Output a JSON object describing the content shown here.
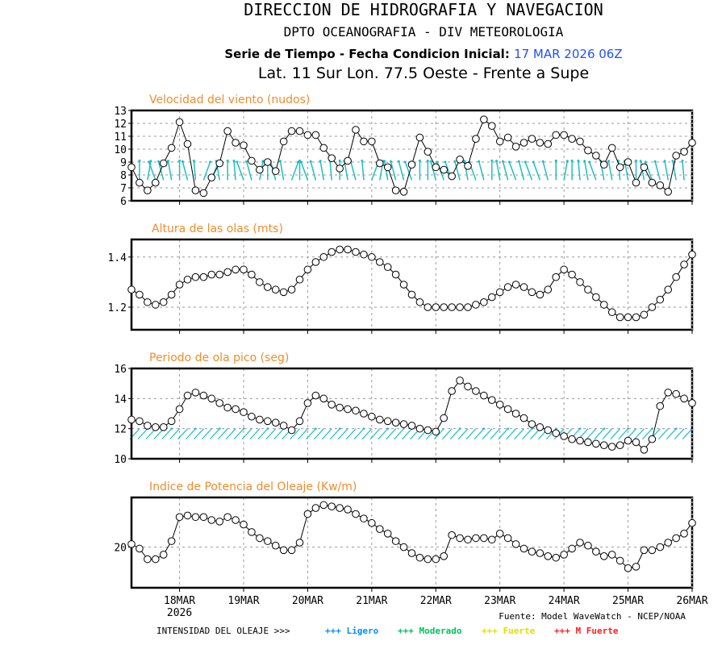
{
  "header": {
    "line1": "DIRECCION DE HIDROGRAFIA Y NAVEGACION",
    "line2": "DPTO OCEANOGRAFIA - DIV METEOROLOGIA",
    "line3_prefix": "Serie de Tiempo - Fecha Condicion Inicial:",
    "line3_date": "17 MAR 2026 06Z",
    "line4": "Lat. 11 Sur  Lon. 77.5 Oeste - Frente a Supe"
  },
  "footer": {
    "source": "Fuente: Model WaveWatch - NCEP/NOAA",
    "legend_label": "INTENSIDAD DEL OLEAJE >>>",
    "legend_items": [
      {
        "label": "+++ Ligero",
        "color": "#0090ff"
      },
      {
        "label": "+++ Moderado",
        "color": "#00c060"
      },
      {
        "label": "+++ Fuerte",
        "color": "#e0e000"
      },
      {
        "label": "+++ M Fuerte",
        "color": "#ff2020"
      }
    ]
  },
  "chart_data": [
    {
      "type": "line",
      "title": "Velocidad del viento (nudos)",
      "x_start": "17MAR2026 06Z",
      "x_step_hours": 3,
      "xticks": [
        "18MAR",
        "19MAR",
        "20MAR",
        "21MAR",
        "22MAR",
        "23MAR",
        "24MAR",
        "25MAR",
        "26MAR"
      ],
      "xtick_sub": "2026",
      "ylim": [
        6,
        13
      ],
      "yticks": [
        6,
        7,
        8,
        9,
        10,
        11,
        12,
        13
      ],
      "grid": true,
      "direction_arrows": true,
      "values": [
        8.6,
        7.4,
        6.8,
        7.4,
        8.9,
        10.1,
        12.1,
        10.4,
        6.8,
        6.6,
        7.8,
        8.9,
        11.4,
        10.5,
        10.3,
        9.1,
        8.4,
        9.0,
        8.3,
        10.6,
        11.4,
        11.4,
        11.1,
        11.1,
        10.1,
        9.3,
        8.5,
        9.1,
        11.5,
        10.6,
        10.6,
        8.9,
        8.6,
        6.8,
        6.7,
        8.8,
        10.9,
        9.8,
        8.6,
        8.4,
        7.9,
        9.2,
        8.7,
        10.8,
        12.3,
        11.8,
        10.6,
        10.9,
        10.2,
        10.5,
        10.8,
        10.5,
        10.4,
        11.1,
        11.1,
        10.8,
        10.6,
        9.9,
        9.5,
        8.8,
        10.1,
        8.6,
        9.0,
        7.4,
        8.6,
        7.4,
        7.2,
        6.7,
        9.5,
        9.8,
        10.5
      ],
      "arrow_angles_deg": [
        0,
        0,
        10,
        -20,
        -15,
        -10,
        0,
        -15,
        -5,
        20,
        20,
        -10,
        0,
        -5,
        -20,
        -15,
        10,
        0,
        -15,
        -10,
        20,
        0,
        -20,
        -15,
        -10,
        -5,
        0,
        -10,
        -15,
        -5,
        20,
        10,
        -10,
        -15,
        -15,
        -20,
        0,
        0,
        -15,
        -20,
        -20,
        -15,
        -10,
        -20,
        -15,
        0,
        -10,
        -15,
        -20,
        -15,
        -20,
        -20,
        -15,
        0,
        10,
        0,
        -5,
        -10,
        -20,
        -10,
        -10,
        -5,
        -10,
        0,
        -10,
        -20,
        -15,
        -10,
        -10,
        -5,
        0
      ]
    },
    {
      "type": "line",
      "title": "Altura de las olas (mts)",
      "ylim": [
        1.11,
        1.47
      ],
      "yticks": [
        1.2,
        1.4
      ],
      "grid": true,
      "values": [
        1.27,
        1.25,
        1.22,
        1.21,
        1.22,
        1.25,
        1.29,
        1.31,
        1.32,
        1.32,
        1.33,
        1.33,
        1.34,
        1.35,
        1.35,
        1.33,
        1.3,
        1.28,
        1.27,
        1.26,
        1.27,
        1.31,
        1.35,
        1.38,
        1.4,
        1.42,
        1.43,
        1.43,
        1.42,
        1.41,
        1.4,
        1.38,
        1.36,
        1.33,
        1.29,
        1.25,
        1.22,
        1.2,
        1.2,
        1.2,
        1.2,
        1.2,
        1.2,
        1.21,
        1.22,
        1.24,
        1.26,
        1.28,
        1.29,
        1.28,
        1.26,
        1.25,
        1.27,
        1.32,
        1.35,
        1.33,
        1.3,
        1.27,
        1.24,
        1.21,
        1.18,
        1.16,
        1.16,
        1.16,
        1.17,
        1.2,
        1.23,
        1.27,
        1.32,
        1.37,
        1.41
      ]
    },
    {
      "type": "line",
      "title": "Periodo de ola pico (seg)",
      "ylim": [
        10,
        16
      ],
      "yticks": [
        10,
        12,
        14,
        16
      ],
      "grid": true,
      "direction_arrows": true,
      "values": [
        12.6,
        12.5,
        12.2,
        12.1,
        12.1,
        12.5,
        13.3,
        14.2,
        14.4,
        14.2,
        14.0,
        13.7,
        13.4,
        13.3,
        13.1,
        12.8,
        12.6,
        12.5,
        12.4,
        12.2,
        11.9,
        12.5,
        13.7,
        14.2,
        14.0,
        13.6,
        13.4,
        13.3,
        13.2,
        13.0,
        12.8,
        12.6,
        12.5,
        12.4,
        12.3,
        12.2,
        12.0,
        11.9,
        11.8,
        12.7,
        14.5,
        15.2,
        14.8,
        14.5,
        14.2,
        13.9,
        13.6,
        13.3,
        13.0,
        12.7,
        12.3,
        12.1,
        11.9,
        11.7,
        11.5,
        11.3,
        11.2,
        11.1,
        11.0,
        10.9,
        10.8,
        10.9,
        11.2,
        11.1,
        10.6,
        11.3,
        13.5,
        14.4,
        14.3,
        14.0,
        13.7
      ]
    },
    {
      "type": "line",
      "title": "Indice de Potencia del Oleaje (Kw/m)",
      "ylim": [
        17.3,
        23.3
      ],
      "yticks": [
        20
      ],
      "grid": true,
      "values": [
        20.2,
        19.9,
        19.2,
        19.2,
        19.5,
        20.4,
        22.0,
        22.1,
        22.0,
        22.0,
        21.8,
        21.7,
        22.0,
        21.8,
        21.5,
        21.0,
        20.6,
        20.4,
        20.1,
        19.8,
        19.8,
        20.3,
        22.2,
        22.6,
        22.8,
        22.7,
        22.6,
        22.5,
        22.2,
        21.9,
        21.6,
        21.2,
        20.9,
        20.4,
        20.0,
        19.6,
        19.3,
        19.2,
        19.2,
        19.4,
        20.8,
        20.6,
        20.5,
        20.6,
        20.6,
        20.5,
        20.9,
        20.6,
        20.2,
        19.9,
        19.7,
        19.6,
        19.4,
        19.3,
        19.5,
        19.9,
        20.3,
        20.1,
        19.7,
        19.4,
        19.5,
        19.1,
        18.6,
        18.7,
        19.8,
        19.8,
        20.0,
        20.3,
        20.6,
        20.9,
        21.6
      ]
    }
  ]
}
